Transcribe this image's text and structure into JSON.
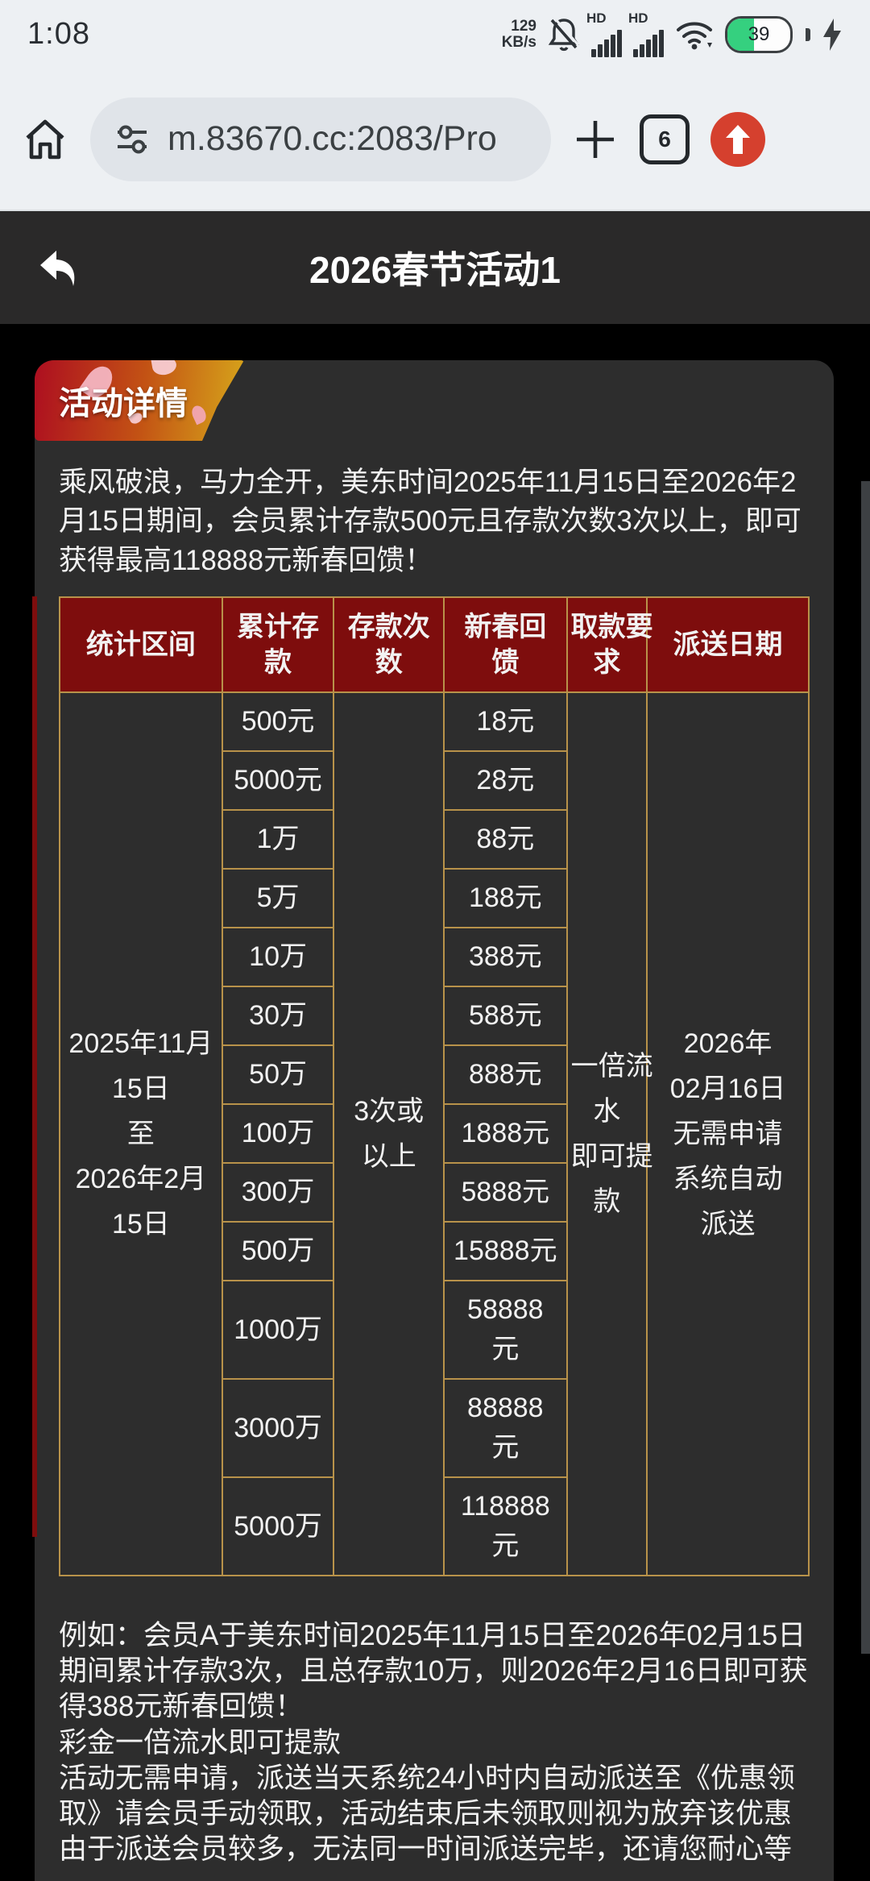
{
  "status_bar": {
    "time": "1:08",
    "network_speed": "129\nKB/s",
    "sim1_label": "HD",
    "sim2_label": "HD",
    "battery_level": "39"
  },
  "browser": {
    "url": "m.83670.cc:2083/Pro",
    "tab_count": "6"
  },
  "page": {
    "title": "2026春节活动1",
    "ribbon_label": "活动详情",
    "intro": "乘风破浪，马力全开，美东时间2025年11月15日至2026年2月15日期间，会员累计存款500元且存款次数3次以上，即可获得最高118888元新春回馈！",
    "footer": "例如：会员A于美东时间2025年11月15日至2026年02月15日期间累计存款3次，且总存款10万，则2026年2月16日即可获得388元新春回馈！\n彩金一倍流水即可提款\n活动无需申请，派送当天系统24小时内自动派送至《优惠领取》请会员手动领取，活动结束后未领取则视为放弃该优惠\n由于派送会员较多，无法同一时间派送完毕，还请您耐心等"
  },
  "table": {
    "headers": [
      "统计区间",
      "累计存\n款",
      "存款次\n数",
      "新春回\n馈",
      "取款要\n求",
      "派送日期"
    ],
    "col_widths": [
      "21.7%",
      "14.9%",
      "14.7%",
      "16.4%",
      "10.7%",
      "21.6%"
    ],
    "merged": {
      "period": "2025年11月\n15日\n至\n2026年2月\n15日",
      "times": "3次或\n以上",
      "withdraw": "一倍流\n水\n即可提\n款",
      "delivery": "2026年\n02月16日\n无需申请\n系统自动\n派送"
    },
    "rows": [
      {
        "deposit": "500元",
        "reward": "18元"
      },
      {
        "deposit": "5000元",
        "reward": "28元"
      },
      {
        "deposit": "1万",
        "reward": "88元"
      },
      {
        "deposit": "5万",
        "reward": "188元"
      },
      {
        "deposit": "10万",
        "reward": "388元"
      },
      {
        "deposit": "30万",
        "reward": "588元"
      },
      {
        "deposit": "50万",
        "reward": "888元"
      },
      {
        "deposit": "100万",
        "reward": "1888元"
      },
      {
        "deposit": "300万",
        "reward": "5888元"
      },
      {
        "deposit": "500万",
        "reward": "15888元"
      },
      {
        "deposit": "1000万",
        "reward": "58888\n元"
      },
      {
        "deposit": "3000万",
        "reward": "88888\n元"
      },
      {
        "deposit": "5000万",
        "reward": "118888\n元"
      }
    ]
  },
  "colors": {
    "header_red": "#7e0d0d",
    "table_border_gold": "#b8924a",
    "card_bg": "#2d2d2d",
    "ribbon_gradient_start": "#ad0e20",
    "ribbon_gradient_end": "#d7a81b",
    "update_button_red": "#d5402e",
    "battery_green": "#35d07f"
  }
}
